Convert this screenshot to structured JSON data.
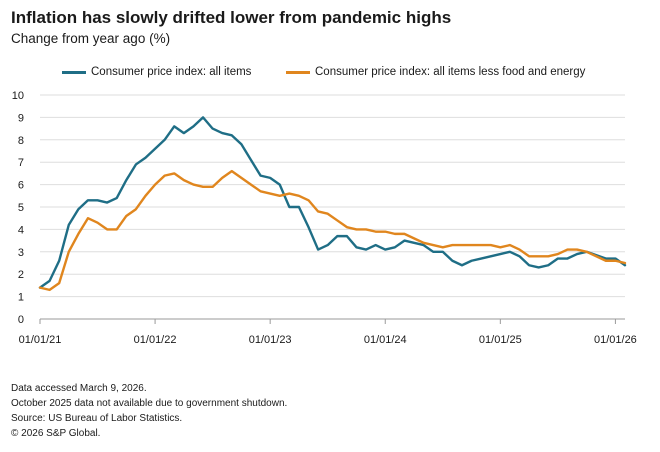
{
  "title": "Inflation has slowly drifted lower from pandemic highs",
  "subtitle": "Change from year ago (%)",
  "notes": [
    "Data accessed March 9, 2026.",
    "October 2025 data not available due to government shutdown.",
    "Source: US Bureau of Labor Statistics.",
    "© 2026 S&P Global."
  ],
  "chart_data": {
    "type": "line",
    "title": "Inflation has slowly drifted lower from pandemic highs",
    "subtitle": "Change from year ago (%)",
    "xlabel": "",
    "ylabel": "",
    "ylim": [
      0,
      10
    ],
    "yticks": [
      0,
      1,
      2,
      3,
      4,
      5,
      6,
      7,
      8,
      9,
      10
    ],
    "xtick_labels": [
      "01/01/21",
      "01/01/22",
      "01/01/23",
      "01/01/24",
      "01/01/25",
      "01/01/26"
    ],
    "grid": "horizontal",
    "legend_position": "top-center",
    "x_start": "2021-01",
    "x_end": "2026-01",
    "missing_month": "2025-10",
    "series": [
      {
        "name": "Consumer price index: all items",
        "color": "#1f6e86",
        "values": [
          1.4,
          1.7,
          2.6,
          4.2,
          4.9,
          5.3,
          5.3,
          5.2,
          5.4,
          6.2,
          6.9,
          7.2,
          7.6,
          8.0,
          8.6,
          8.3,
          8.6,
          9.0,
          8.5,
          8.3,
          8.2,
          7.8,
          7.1,
          6.4,
          6.3,
          6.0,
          5.0,
          5.0,
          4.1,
          3.1,
          3.3,
          3.7,
          3.7,
          3.2,
          3.1,
          3.3,
          3.1,
          3.2,
          3.5,
          3.4,
          3.3,
          3.0,
          3.0,
          2.6,
          2.4,
          2.6,
          2.7,
          2.8,
          2.9,
          3.0,
          2.8,
          2.4,
          2.3,
          2.4,
          2.7,
          2.7,
          2.9,
          3.0,
          null,
          2.7,
          2.7,
          2.4
        ]
      },
      {
        "name": "Consumer price index: all items less food and energy",
        "color": "#e0861e",
        "values": [
          1.4,
          1.3,
          1.6,
          3.0,
          3.8,
          4.5,
          4.3,
          4.0,
          4.0,
          4.6,
          4.9,
          5.5,
          6.0,
          6.4,
          6.5,
          6.2,
          6.0,
          5.9,
          5.9,
          6.3,
          6.6,
          6.3,
          6.0,
          5.7,
          5.6,
          5.5,
          5.6,
          5.5,
          5.3,
          4.8,
          4.7,
          4.4,
          4.1,
          4.0,
          4.0,
          3.9,
          3.9,
          3.8,
          3.8,
          3.6,
          3.4,
          3.3,
          3.2,
          3.3,
          3.3,
          3.3,
          3.3,
          3.3,
          3.2,
          3.3,
          3.1,
          2.8,
          2.8,
          2.8,
          2.9,
          3.1,
          3.1,
          3.0,
          null,
          2.6,
          2.6,
          2.5
        ]
      }
    ]
  }
}
